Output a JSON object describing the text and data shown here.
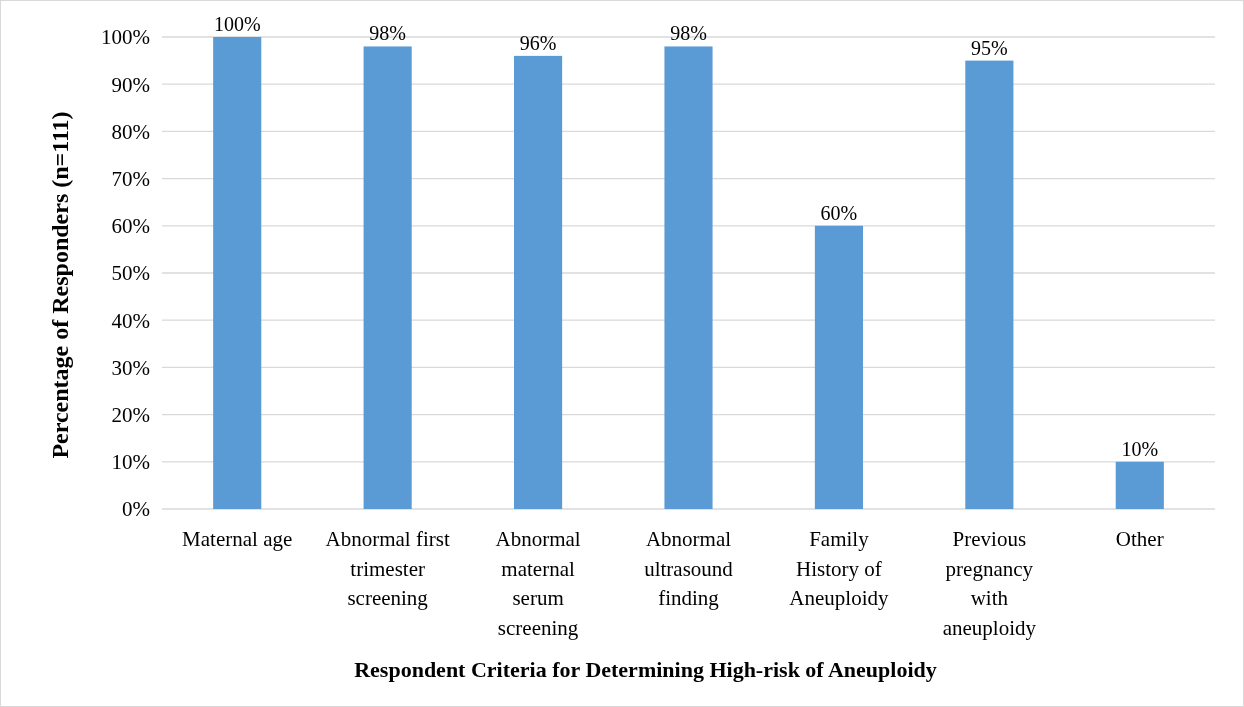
{
  "chart_data": {
    "type": "bar",
    "xlabel": "Respondent Criteria for Determining High-risk of Aneuploidy",
    "ylabel": "Percentage of Responders (n=111)",
    "categories": [
      "Maternal age",
      "Abnormal first\ntrimester\nscreening",
      "Abnormal\nmaternal\nserum\nscreening",
      "Abnormal\nultrasound\nfinding",
      "Family\nHistory of\nAneuploidy",
      "Previous\npregnancy\nwith\naneuploidy",
      "Other"
    ],
    "values": [
      100,
      98,
      96,
      98,
      60,
      95,
      10
    ],
    "value_labels": [
      "100%",
      "98%",
      "96%",
      "98%",
      "60%",
      "95%",
      "10%"
    ],
    "color": "#5b9bd5",
    "ylim": [
      0,
      100
    ],
    "yticks": [
      {
        "value": 0,
        "label": "0%"
      },
      {
        "value": 10,
        "label": "10%"
      },
      {
        "value": 20,
        "label": "20%"
      },
      {
        "value": 30,
        "label": "30%"
      },
      {
        "value": 40,
        "label": "40%"
      },
      {
        "value": 50,
        "label": "50%"
      },
      {
        "value": 60,
        "label": "60%"
      },
      {
        "value": 70,
        "label": "70%"
      },
      {
        "value": 80,
        "label": "80%"
      },
      {
        "value": 90,
        "label": "90%"
      },
      {
        "value": 100,
        "label": "100%"
      }
    ],
    "grid": "y"
  }
}
